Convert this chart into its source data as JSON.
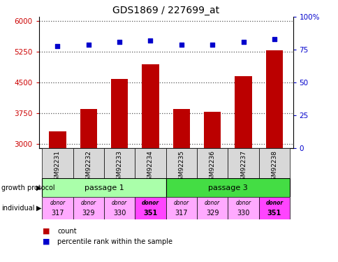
{
  "title": "GDS1869 / 227699_at",
  "samples": [
    "GSM92231",
    "GSM92232",
    "GSM92233",
    "GSM92234",
    "GSM92235",
    "GSM92236",
    "GSM92237",
    "GSM92238"
  ],
  "counts": [
    3300,
    3850,
    4580,
    4950,
    3850,
    3780,
    4650,
    5280
  ],
  "percentiles": [
    78,
    79,
    81,
    82,
    79,
    79,
    81,
    83
  ],
  "ylim_left": [
    2900,
    6100
  ],
  "ylim_right": [
    0,
    100
  ],
  "yticks_left": [
    3000,
    3750,
    4500,
    5250,
    6000
  ],
  "yticks_right": [
    0,
    25,
    50,
    75,
    100
  ],
  "bar_color": "#bb0000",
  "dot_color": "#0000cc",
  "passage1_color": "#aaffaa",
  "passage3_color": "#44dd44",
  "donor_colors_light": "#ffaaff",
  "donor_colors_bold": "#ff44ff",
  "bold_donor": "351",
  "donors": [
    "317",
    "329",
    "330",
    "351",
    "317",
    "329",
    "330",
    "351"
  ],
  "legend_count_color": "#bb0000",
  "legend_dot_color": "#0000cc",
  "grid_color": "#555555",
  "ax_label_color_left": "#cc0000",
  "ax_label_color_right": "#0000cc",
  "sample_box_color": "#d8d8d8"
}
